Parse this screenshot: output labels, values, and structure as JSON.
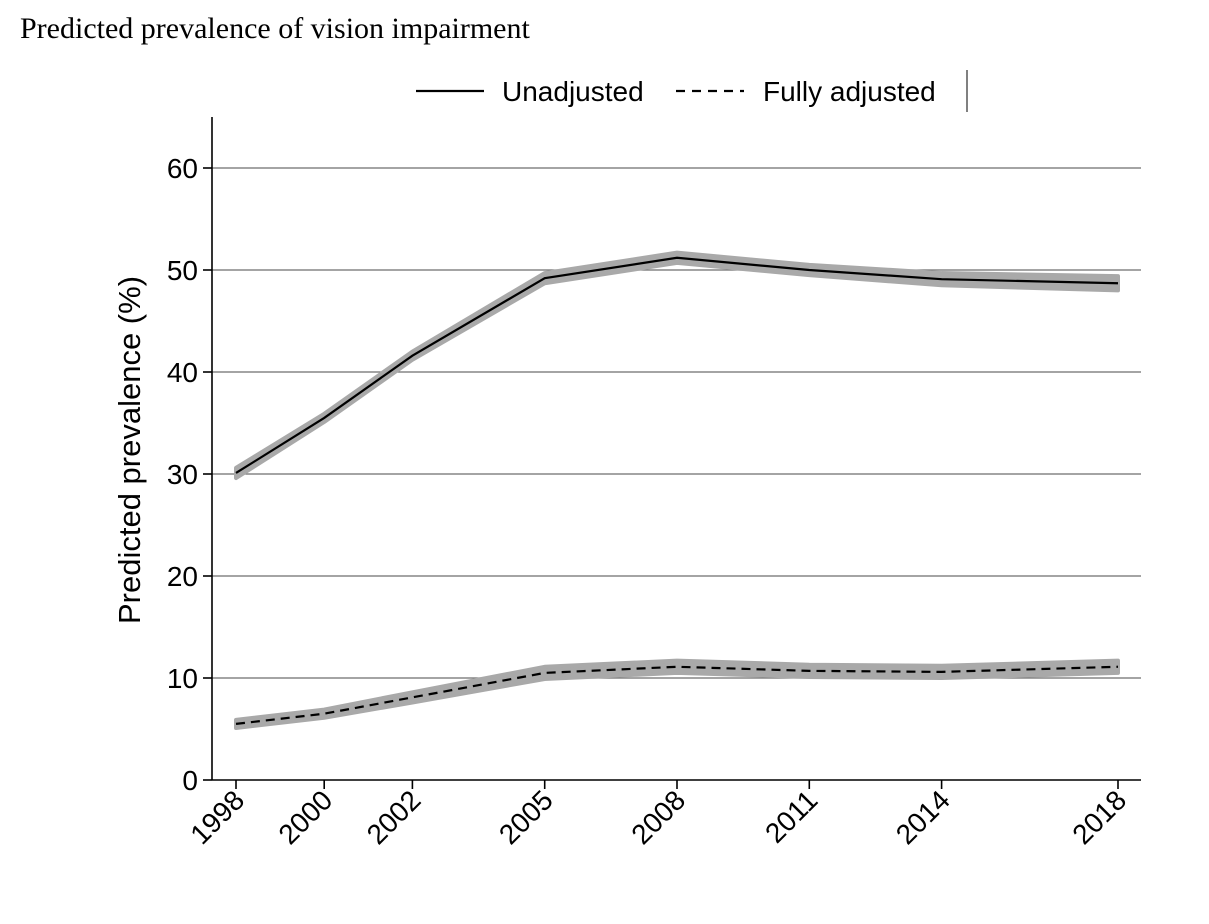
{
  "page_title": "Predicted prevalence of vision impairment",
  "chart_data": {
    "type": "line",
    "title": "",
    "xlabel": "",
    "ylabel": "Predicted prevalence (%)",
    "ylim": [
      0,
      65
    ],
    "yticks": [
      0,
      10,
      20,
      30,
      40,
      50,
      60
    ],
    "x": [
      1998,
      2000,
      2002,
      2005,
      2008,
      2011,
      2014,
      2018
    ],
    "x_tick_labels": [
      "1998",
      "2000",
      "2002",
      "2005",
      "2008",
      "2011",
      "2014",
      "2018"
    ],
    "grid": true,
    "legend_position": "top",
    "series": [
      {
        "name": "Unadjusted",
        "style": "solid",
        "values": [
          30.1,
          35.5,
          41.6,
          49.2,
          51.2,
          50.0,
          49.1,
          48.7
        ],
        "ci_lower": [
          29.6,
          35.1,
          41.2,
          48.7,
          50.7,
          49.5,
          48.5,
          48.0
        ],
        "ci_upper": [
          30.6,
          35.9,
          42.0,
          49.7,
          51.7,
          50.5,
          49.7,
          49.4
        ]
      },
      {
        "name": "Fully adjusted",
        "style": "dashed",
        "values": [
          5.5,
          6.5,
          8.1,
          10.5,
          11.1,
          10.7,
          10.6,
          11.1
        ],
        "ci_lower": [
          5.1,
          6.1,
          7.6,
          9.9,
          10.5,
          10.1,
          10.0,
          10.5
        ],
        "ci_upper": [
          5.9,
          6.9,
          8.6,
          11.1,
          11.7,
          11.3,
          11.2,
          11.7
        ]
      }
    ],
    "colors": {
      "line": "#000000",
      "ci_band": "#a9a9a9",
      "grid": "#6e6e6e"
    }
  }
}
